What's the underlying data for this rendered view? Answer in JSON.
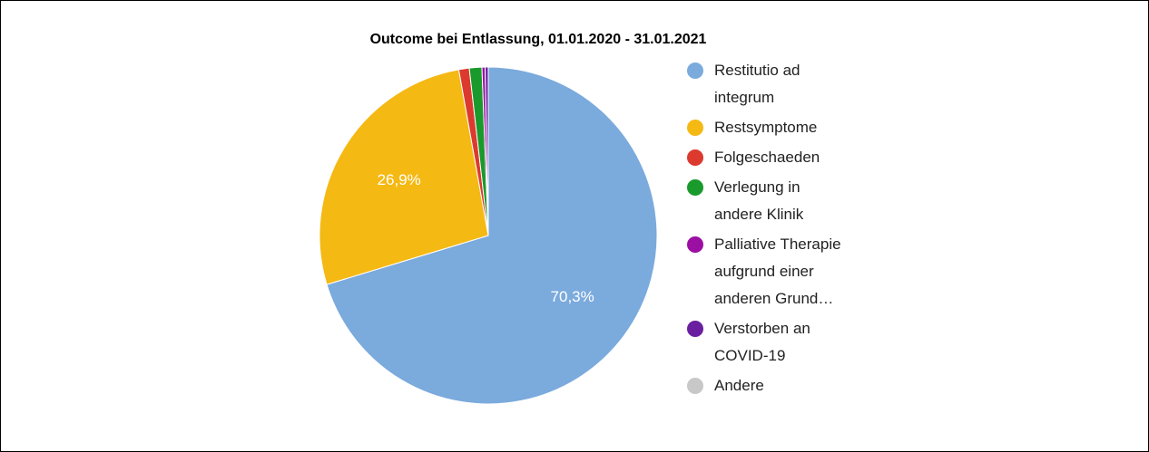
{
  "chart_data": {
    "type": "pie",
    "title": "Outcome bei Entlassung, 01.01.2020 - 31.01.2021",
    "categories": [
      "Restitutio ad integrum",
      "Restsymptome",
      "Folgeschaeden",
      "Verlegung in andere Klinik",
      "Palliative Therapie aufgrund einer anderen Grund…",
      "Verstorben an COVID-19",
      "Andere"
    ],
    "values": [
      70.3,
      26.9,
      1.0,
      1.2,
      0.3,
      0.3,
      0
    ],
    "value_labels": [
      "70,3%",
      "26,9%",
      null,
      null,
      null,
      null,
      null
    ],
    "colors": [
      "#7baadd",
      "#f5b914",
      "#dc3a2e",
      "#1a9a2c",
      "#9b0fa3",
      "#6a1fa0",
      "#c8c8c8"
    ]
  }
}
